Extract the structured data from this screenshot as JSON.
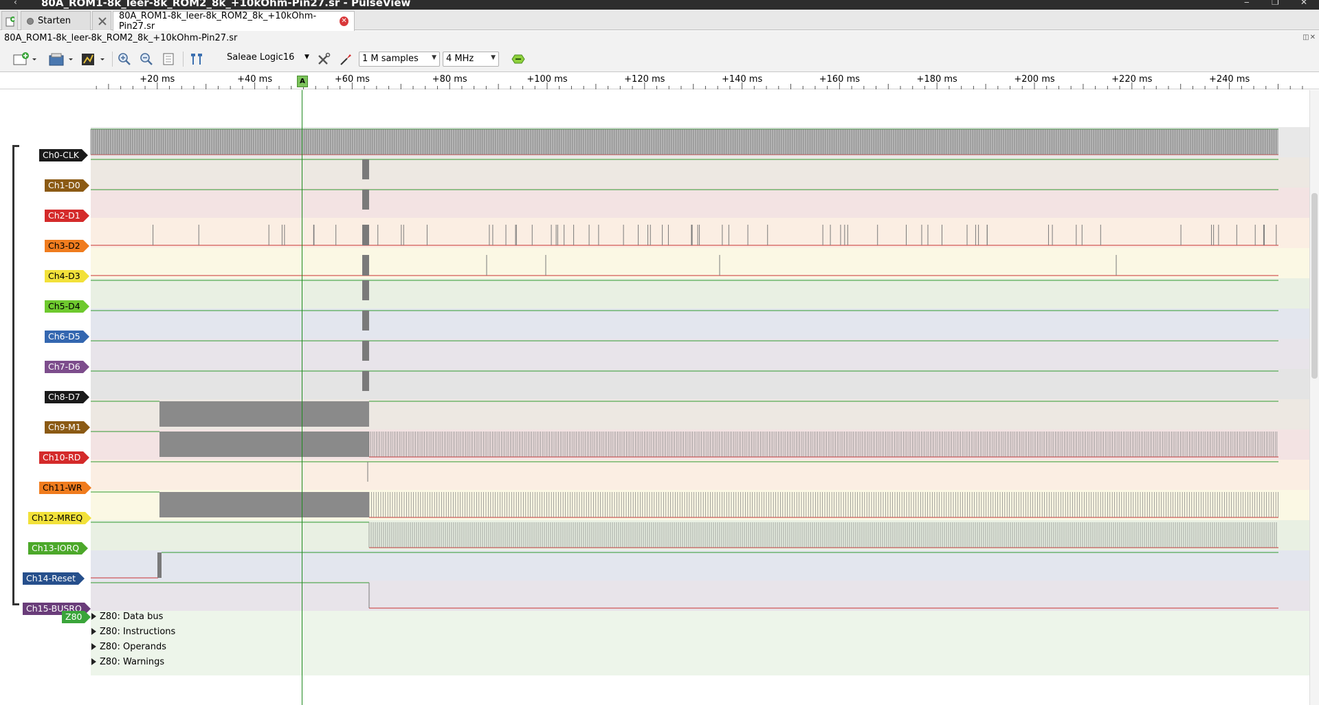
{
  "window": {
    "title": "80A_ROM1-8k_leer-8k_ROM2_8k_+10kOhm-Pin27.sr - PulseView"
  },
  "tabs": [
    {
      "label": "Starten"
    },
    {
      "label": "80A_ROM1-8k_leer-8k_ROM2_8k_+10kOhm-Pin27.sr"
    }
  ],
  "session": {
    "filename": "80A_ROM1-8k_leer-8k_ROM2_8k_+10kOhm-Pin27.sr"
  },
  "toolbar": {
    "device": "Saleae Logic16",
    "samples": "1 M samples",
    "samplerate": "4 MHz"
  },
  "ruler": {
    "ticks": [
      "+20 ms",
      "+40 ms",
      "+60 ms",
      "+80 ms",
      "+100 ms",
      "+120 ms",
      "+140 ms",
      "+160 ms",
      "+180 ms",
      "+200 ms",
      "+220 ms",
      "+240 ms"
    ],
    "marker": "A"
  },
  "channels": [
    {
      "name": "Ch0-CLK",
      "color": "#1a1a1a",
      "text": "#ffffff",
      "bg": "#e8e8e8"
    },
    {
      "name": "Ch1-D0",
      "color": "#8b5a14",
      "text": "#ffffff",
      "bg": "#ede8e2"
    },
    {
      "name": "Ch2-D1",
      "color": "#d42a2a",
      "text": "#ffffff",
      "bg": "#f3e3e3"
    },
    {
      "name": "Ch3-D2",
      "color": "#f07c1e",
      "text": "#000000",
      "bg": "#fbeee3"
    },
    {
      "name": "Ch4-D3",
      "color": "#f2e13a",
      "text": "#000000",
      "bg": "#fbf8e4"
    },
    {
      "name": "Ch5-D4",
      "color": "#6ec92e",
      "text": "#000000",
      "bg": "#e9f0e3"
    },
    {
      "name": "Ch6-D5",
      "color": "#3467b0",
      "text": "#ffffff",
      "bg": "#e3e6ee"
    },
    {
      "name": "Ch7-D6",
      "color": "#7d4d8c",
      "text": "#ffffff",
      "bg": "#e8e4ea"
    },
    {
      "name": "Ch8-D7",
      "color": "#1a1a1a",
      "text": "#ffffff",
      "bg": "#e4e4e4"
    },
    {
      "name": "Ch9-M1",
      "color": "#8b5a14",
      "text": "#ffffff",
      "bg": "#ede8e2"
    },
    {
      "name": "Ch10-RD",
      "color": "#d42a2a",
      "text": "#ffffff",
      "bg": "#f3e3e3"
    },
    {
      "name": "Ch11-WR",
      "color": "#f07c1e",
      "text": "#000000",
      "bg": "#fbeee3"
    },
    {
      "name": "Ch12-MREQ",
      "color": "#f2e13a",
      "text": "#000000",
      "bg": "#fbf8e4"
    },
    {
      "name": "Ch13-IORQ",
      "color": "#4ca82a",
      "text": "#ffffff",
      "bg": "#e9f0e3"
    },
    {
      "name": "Ch14-Reset",
      "color": "#264f8c",
      "text": "#ffffff",
      "bg": "#e3e6ee"
    },
    {
      "name": "Ch15-BUSRQ",
      "color": "#6a3d7a",
      "text": "#ffffff",
      "bg": "#e8e4ea"
    }
  ],
  "decoder": {
    "name": "Z80",
    "color": "#3aa53a",
    "rows": [
      {
        "label": "Z80: Data bus"
      },
      {
        "label": "Z80: Instructions"
      },
      {
        "label": "Z80: Operands"
      },
      {
        "label": "Z80: Warnings"
      }
    ]
  }
}
